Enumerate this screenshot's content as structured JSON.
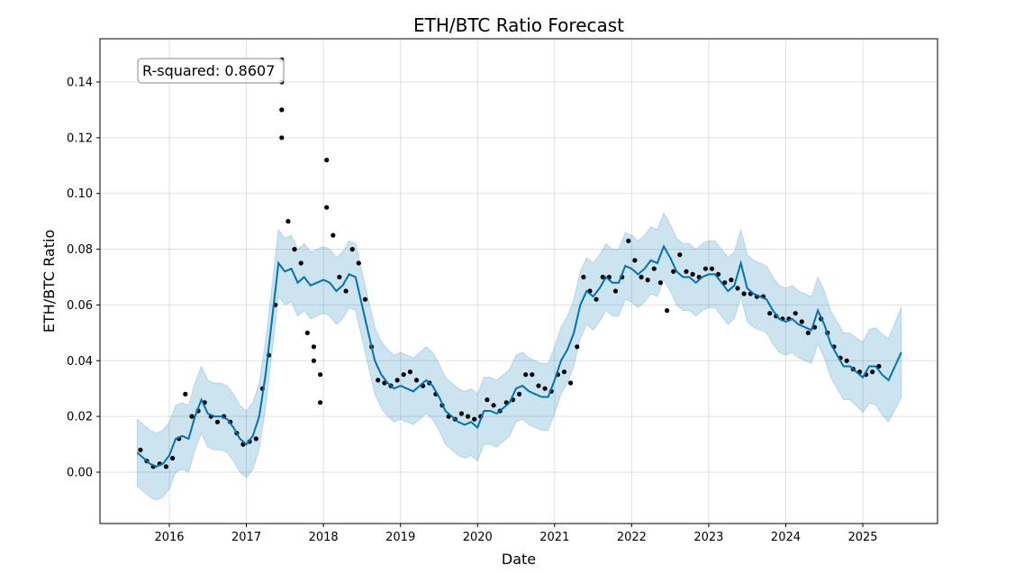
{
  "chart_data": {
    "type": "line",
    "title": "ETH/BTC Ratio Forecast",
    "xlabel": "Date",
    "ylabel": "ETH/BTC Ratio",
    "xlim": [
      "2015-01",
      "2025-12"
    ],
    "ylim": [
      -0.0184,
      0.1555
    ],
    "x_ticks": [
      "2016",
      "2017",
      "2018",
      "2019",
      "2020",
      "2021",
      "2022",
      "2023",
      "2024",
      "2025"
    ],
    "y_ticks": [
      "0.00",
      "0.02",
      "0.04",
      "0.06",
      "0.08",
      "0.10",
      "0.12",
      "0.14"
    ],
    "grid": true,
    "annotation": "R-squared: 0.8607",
    "colors": {
      "forecast": "#0072B2",
      "band": "#0072B2",
      "observed": "#000000"
    },
    "forecast": {
      "start": "2015-08",
      "frequency": "monthly",
      "yhat": [
        0.007,
        0.005,
        0.003,
        0.002,
        0.003,
        0.006,
        0.012,
        0.013,
        0.012,
        0.02,
        0.026,
        0.021,
        0.02,
        0.02,
        0.019,
        0.016,
        0.012,
        0.01,
        0.013,
        0.02,
        0.035,
        0.055,
        0.075,
        0.072,
        0.073,
        0.068,
        0.07,
        0.067,
        0.068,
        0.069,
        0.068,
        0.065,
        0.067,
        0.071,
        0.07,
        0.06,
        0.05,
        0.04,
        0.035,
        0.032,
        0.03,
        0.031,
        0.03,
        0.029,
        0.031,
        0.033,
        0.031,
        0.027,
        0.022,
        0.02,
        0.018,
        0.017,
        0.018,
        0.016,
        0.022,
        0.022,
        0.021,
        0.023,
        0.025,
        0.03,
        0.031,
        0.029,
        0.028,
        0.027,
        0.027,
        0.033,
        0.04,
        0.044,
        0.05,
        0.06,
        0.065,
        0.063,
        0.066,
        0.07,
        0.068,
        0.068,
        0.074,
        0.073,
        0.071,
        0.073,
        0.076,
        0.075,
        0.081,
        0.077,
        0.072,
        0.07,
        0.07,
        0.068,
        0.07,
        0.071,
        0.071,
        0.068,
        0.065,
        0.067,
        0.075,
        0.066,
        0.064,
        0.063,
        0.062,
        0.058,
        0.055,
        0.054,
        0.055,
        0.053,
        0.052,
        0.051,
        0.058,
        0.053,
        0.046,
        0.042,
        0.038,
        0.038,
        0.036,
        0.034,
        0.038,
        0.038,
        0.035,
        0.033,
        0.038,
        0.043
      ],
      "interval_halfwidth": 0.012
    },
    "observed": [
      [
        "2015-08",
        0.008
      ],
      [
        "2015-09",
        0.004
      ],
      [
        "2015-10",
        0.002
      ],
      [
        "2015-11",
        0.003
      ],
      [
        "2015-12",
        0.002
      ],
      [
        "2016-01",
        0.005
      ],
      [
        "2016-02",
        0.012
      ],
      [
        "2016-03",
        0.028
      ],
      [
        "2016-04",
        0.02
      ],
      [
        "2016-05",
        0.022
      ],
      [
        "2016-06",
        0.025
      ],
      [
        "2016-07",
        0.02
      ],
      [
        "2016-08",
        0.018
      ],
      [
        "2016-09",
        0.02
      ],
      [
        "2016-10",
        0.018
      ],
      [
        "2016-11",
        0.014
      ],
      [
        "2016-12",
        0.01
      ],
      [
        "2017-01",
        0.011
      ],
      [
        "2017-02",
        0.012
      ],
      [
        "2017-03",
        0.03
      ],
      [
        "2017-04",
        0.042
      ],
      [
        "2017-05",
        0.06
      ],
      [
        "2017-06",
        0.12
      ],
      [
        "2017-07",
        0.09
      ],
      [
        "2017-08",
        0.08
      ],
      [
        "2017-09",
        0.075
      ],
      [
        "2017-10",
        0.05
      ],
      [
        "2017-11",
        0.045
      ],
      [
        "2017-12",
        0.035
      ],
      [
        "2018-01",
        0.095
      ],
      [
        "2018-02",
        0.085
      ],
      [
        "2018-03",
        0.07
      ],
      [
        "2018-04",
        0.065
      ],
      [
        "2018-05",
        0.08
      ],
      [
        "2018-06",
        0.075
      ],
      [
        "2018-07",
        0.062
      ],
      [
        "2018-08",
        0.045
      ],
      [
        "2018-09",
        0.033
      ],
      [
        "2018-10",
        0.032
      ],
      [
        "2018-11",
        0.031
      ],
      [
        "2018-12",
        0.033
      ],
      [
        "2019-01",
        0.035
      ],
      [
        "2019-02",
        0.036
      ],
      [
        "2019-03",
        0.033
      ],
      [
        "2019-04",
        0.031
      ],
      [
        "2019-05",
        0.032
      ],
      [
        "2019-06",
        0.028
      ],
      [
        "2019-07",
        0.024
      ],
      [
        "2019-08",
        0.02
      ],
      [
        "2019-09",
        0.019
      ],
      [
        "2019-10",
        0.021
      ],
      [
        "2019-11",
        0.02
      ],
      [
        "2019-12",
        0.019
      ],
      [
        "2020-01",
        0.02
      ],
      [
        "2020-02",
        0.026
      ],
      [
        "2020-03",
        0.024
      ],
      [
        "2020-04",
        0.022
      ],
      [
        "2020-05",
        0.025
      ],
      [
        "2020-06",
        0.026
      ],
      [
        "2020-07",
        0.028
      ],
      [
        "2020-08",
        0.035
      ],
      [
        "2020-09",
        0.035
      ],
      [
        "2020-10",
        0.031
      ],
      [
        "2020-11",
        0.03
      ],
      [
        "2020-12",
        0.029
      ],
      [
        "2021-01",
        0.035
      ],
      [
        "2021-02",
        0.036
      ],
      [
        "2021-03",
        0.032
      ],
      [
        "2021-04",
        0.045
      ],
      [
        "2021-05",
        0.07
      ],
      [
        "2021-06",
        0.065
      ],
      [
        "2021-07",
        0.062
      ],
      [
        "2021-08",
        0.07
      ],
      [
        "2021-09",
        0.07
      ],
      [
        "2021-10",
        0.065
      ],
      [
        "2021-11",
        0.07
      ],
      [
        "2021-12",
        0.083
      ],
      [
        "2022-01",
        0.076
      ],
      [
        "2022-02",
        0.07
      ],
      [
        "2022-03",
        0.069
      ],
      [
        "2022-04",
        0.073
      ],
      [
        "2022-05",
        0.068
      ],
      [
        "2022-06",
        0.058
      ],
      [
        "2022-07",
        0.072
      ],
      [
        "2022-08",
        0.078
      ],
      [
        "2022-09",
        0.072
      ],
      [
        "2022-10",
        0.071
      ],
      [
        "2022-11",
        0.07
      ],
      [
        "2022-12",
        0.073
      ],
      [
        "2023-01",
        0.073
      ],
      [
        "2023-02",
        0.071
      ],
      [
        "2023-03",
        0.068
      ],
      [
        "2023-04",
        0.069
      ],
      [
        "2023-05",
        0.066
      ],
      [
        "2023-06",
        0.064
      ],
      [
        "2023-07",
        0.064
      ],
      [
        "2023-08",
        0.063
      ],
      [
        "2023-09",
        0.063
      ],
      [
        "2023-10",
        0.057
      ],
      [
        "2023-11",
        0.056
      ],
      [
        "2023-12",
        0.055
      ],
      [
        "2024-01",
        0.055
      ],
      [
        "2024-02",
        0.057
      ],
      [
        "2024-03",
        0.054
      ],
      [
        "2024-04",
        0.05
      ],
      [
        "2024-05",
        0.052
      ],
      [
        "2024-06",
        0.055
      ],
      [
        "2024-07",
        0.05
      ],
      [
        "2024-08",
        0.045
      ],
      [
        "2024-09",
        0.041
      ],
      [
        "2024-10",
        0.04
      ],
      [
        "2024-11",
        0.037
      ],
      [
        "2024-12",
        0.036
      ],
      [
        "2025-01",
        0.035
      ],
      [
        "2025-02",
        0.036
      ],
      [
        "2025-03",
        0.038
      ],
      [
        "2017-06",
        0.148
      ],
      [
        "2017-06",
        0.14
      ],
      [
        "2017-06",
        0.13
      ],
      [
        "2018-01",
        0.112
      ],
      [
        "2017-12",
        0.025
      ],
      [
        "2017-11",
        0.04
      ]
    ]
  }
}
